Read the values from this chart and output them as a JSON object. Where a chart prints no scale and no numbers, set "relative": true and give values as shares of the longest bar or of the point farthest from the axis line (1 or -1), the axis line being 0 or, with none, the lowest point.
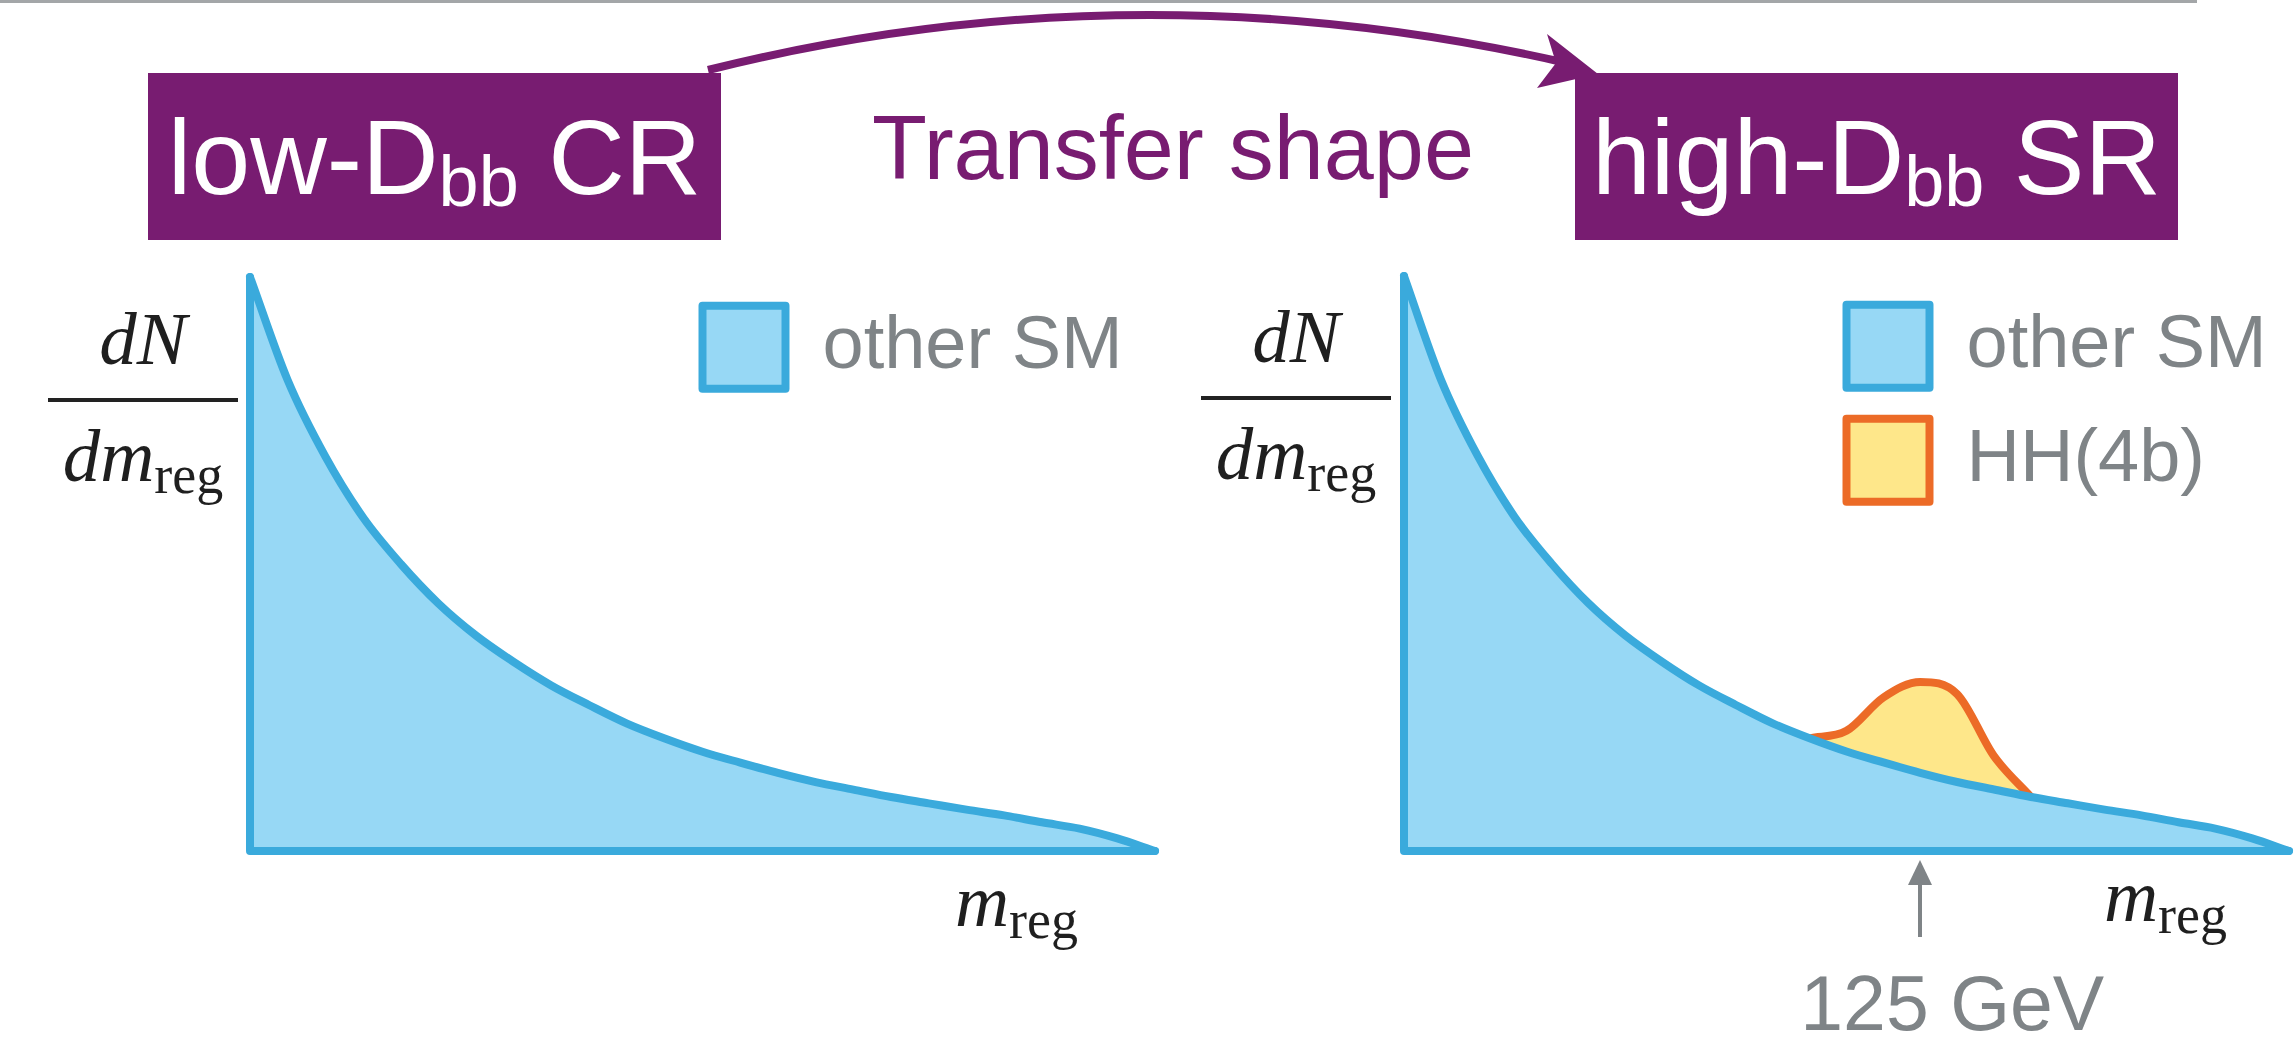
{
  "chart_data": [
    {
      "type": "area",
      "title": "low-D$_{bb}$ CR",
      "ylabel": "dN\ndm$_{reg}$",
      "xlabel": "m$_{reg}$",
      "annotations": [
        "Transfer shape"
      ],
      "relative": true,
      "legend": "top right",
      "categories": [
        null,
        null,
        null,
        null,
        null,
        null,
        null,
        null,
        null,
        null,
        null,
        null,
        null,
        null,
        null,
        null,
        null,
        null,
        null,
        null,
        null,
        null,
        null,
        null,
        null
      ],
      "series": [
        {
          "name": "other SM",
          "color": "#97d8f5",
          "values": [
            1,
            0.82,
            0.687,
            0.581,
            0.5,
            0.431,
            0.375,
            0.329,
            0.288,
            0.254,
            0.222,
            0.196,
            0.173,
            0.154,
            0.136,
            0.12,
            0.107,
            0.094,
            0.083,
            0.072,
            0.062,
            0.05,
            0.039,
            0.022,
            0
          ]
        }
      ]
    },
    {
      "type": "area",
      "title": "high-D$_{bb}$ SR",
      "ylabel": "dN\ndm$_{reg}$",
      "xlabel": "m$_{reg}$",
      "annotations": [
        "125 GeV"
      ],
      "relative": true,
      "stacked": true,
      "legend": "top right",
      "categories": [
        null,
        null,
        null,
        null,
        null,
        null,
        null,
        null,
        null,
        null,
        null,
        null,
        null,
        null,
        null,
        null,
        null,
        null,
        null,
        null,
        null,
        null,
        null,
        null,
        null
      ],
      "series": [
        {
          "name": "other SM",
          "color": "#97d8f5",
          "values": [
            1,
            0.82,
            0.687,
            0.581,
            0.5,
            0.431,
            0.375,
            0.329,
            0.288,
            0.254,
            0.222,
            0.196,
            0.173,
            0.154,
            0.136,
            0.12,
            0.107,
            0.094,
            0.083,
            0.072,
            0.062,
            0.05,
            0.039,
            0.022,
            0
          ]
        },
        {
          "name": "HH(4b)",
          "color": "#fee78a",
          "values": [
            null,
            null,
            null,
            null,
            null,
            null,
            null,
            null,
            null,
            null,
            null,
            0,
            0.036,
            0.113,
            0.158,
            0.153,
            0.058,
            0,
            null,
            null,
            null,
            null,
            null,
            null,
            null
          ]
        }
      ]
    }
  ]
}
